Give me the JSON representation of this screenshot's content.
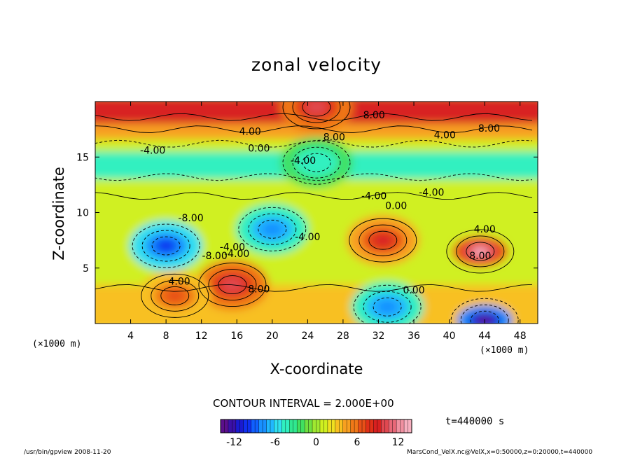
{
  "chart_data": {
    "type": "heatmap",
    "title": "zonal velocity",
    "xlabel": "X-coordinate",
    "ylabel": "Z-coordinate",
    "x_unit": "(×1000 m)",
    "y_unit": "(×1000 m)",
    "xlim": [
      0,
      50
    ],
    "ylim": [
      0,
      20
    ],
    "x_ticks": [
      4,
      8,
      12,
      16,
      20,
      24,
      28,
      32,
      36,
      40,
      44,
      48
    ],
    "y_ticks": [
      5,
      10,
      15
    ],
    "contour_interval_label": "CONTOUR INTERVAL = 2.000E+00",
    "colorbar": {
      "min": -14,
      "max": 14,
      "ticks": [
        -12,
        -6,
        0,
        6,
        12
      ],
      "colors": [
        "#5b0f8c",
        "#3a10a8",
        "#1a1ad0",
        "#1030f0",
        "#1060ff",
        "#1890ff",
        "#20b8ff",
        "#30e0f0",
        "#30f0c0",
        "#30e890",
        "#40e060",
        "#70e040",
        "#a0e830",
        "#d0f020",
        "#f0e020",
        "#f8c020",
        "#f8a020",
        "#f07818",
        "#e85018",
        "#e03018",
        "#d82020",
        "#e04850",
        "#e86878",
        "#f090a0",
        "#f8b0c0"
      ]
    },
    "features": [
      {
        "x": 43.5,
        "z": 6.5,
        "value": 13,
        "label": "8.00"
      },
      {
        "x": 32.5,
        "z": 7.5,
        "value": 9,
        "label": "4.00"
      },
      {
        "x": 15.5,
        "z": 3.5,
        "value": 10,
        "label": "8.00"
      },
      {
        "x": 9.0,
        "z": 2.5,
        "value": 7,
        "label": "4.00"
      },
      {
        "x": 8.0,
        "z": 7.0,
        "value": -10,
        "label": "-8.00"
      },
      {
        "x": 20.0,
        "z": 8.5,
        "value": -8,
        "label": "-8.00"
      },
      {
        "x": 25.0,
        "z": 14.5,
        "value": -5,
        "label": "-4.00"
      },
      {
        "x": 33.0,
        "z": 1.5,
        "value": -8,
        "label": "0.00"
      },
      {
        "x": 44.0,
        "z": 0.3,
        "value": -14,
        "label": ""
      },
      {
        "x": 25.0,
        "z": 19.5,
        "value": 10,
        "label": "8.00"
      }
    ],
    "contour_labels": [
      "8.00",
      "4.00",
      "-8.00",
      "4.00",
      "0.00",
      "-4.00",
      "8.00",
      "-4.00",
      "8.00",
      "-4.00",
      "-4.00",
      "0.00",
      "-4.00",
      "-4.00",
      "-8.00",
      "-4.00",
      "4.00",
      "4.00",
      "8.00",
      "0.00",
      "8.00"
    ]
  },
  "time_label": "t=440000 s",
  "footer": {
    "left": "/usr/bin/gpview  2008-11-20",
    "right": "MarsCond_VelX.nc@VelX,x=0:50000,z=0:20000,t=440000"
  }
}
